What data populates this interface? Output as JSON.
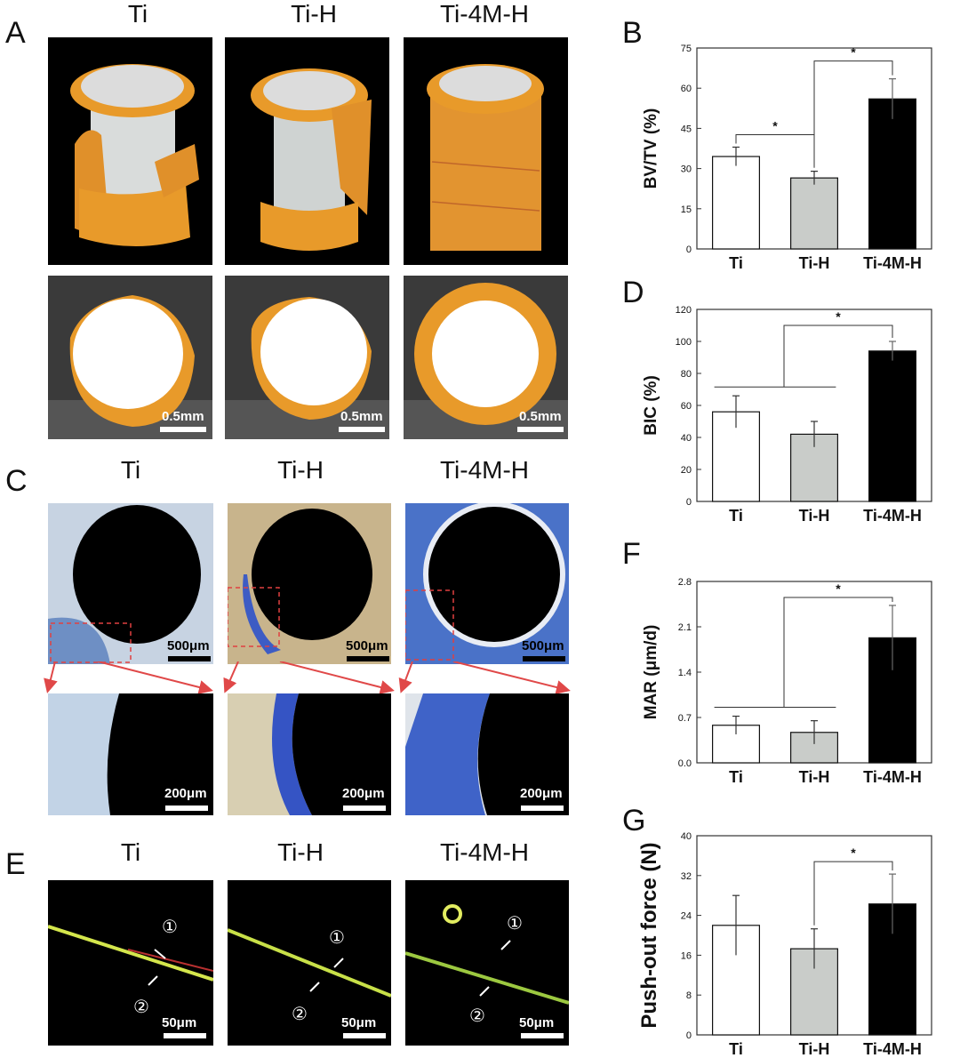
{
  "panel_labels": {
    "A": "A",
    "B": "B",
    "C": "C",
    "D": "D",
    "E": "E",
    "F": "F",
    "G": "G"
  },
  "groups": [
    "Ti",
    "Ti-H",
    "Ti-4M-H"
  ],
  "scale_labels": {
    "A": "0.5mm",
    "C_top": "500μm",
    "C_bottom": "200μm",
    "E": "50μm"
  },
  "arrow_labels": {
    "one": "①",
    "two": "②"
  },
  "colors": {
    "bone_orange": "#e89a2a",
    "stain_blue": "#3f63c8",
    "bar_gray": "#c9ccc9",
    "bar_black": "#000000"
  },
  "chart_data": [
    {
      "id": "B",
      "type": "bar",
      "ylabel": "BV/TV (%)",
      "categories": [
        "Ti",
        "Ti-H",
        "Ti-4M-H"
      ],
      "values": [
        34.5,
        26.5,
        56
      ],
      "errors": [
        3.5,
        2.5,
        7.5
      ],
      "ylim": [
        0,
        75
      ],
      "ticks": [
        0,
        15,
        30,
        45,
        60,
        75
      ],
      "significance": [
        {
          "from": 0,
          "to": 1,
          "label": "*"
        },
        {
          "from": 1,
          "to": 2,
          "label": "*"
        }
      ]
    },
    {
      "id": "D",
      "type": "bar",
      "ylabel": "BIC (%)",
      "categories": [
        "Ti",
        "Ti-H",
        "Ti-4M-H"
      ],
      "values": [
        56,
        42,
        94
      ],
      "errors": [
        10,
        8,
        6
      ],
      "ylim": [
        0,
        120
      ],
      "ticks": [
        0,
        20,
        40,
        60,
        80,
        100,
        120
      ],
      "significance": [
        {
          "from": "0-1",
          "to": 2,
          "label": "*"
        }
      ]
    },
    {
      "id": "F",
      "type": "bar",
      "ylabel": "MAR (μm/d)",
      "categories": [
        "Ti",
        "Ti-H",
        "Ti-4M-H"
      ],
      "values": [
        0.58,
        0.47,
        1.93
      ],
      "errors": [
        0.14,
        0.18,
        0.5
      ],
      "ylim": [
        0,
        2.8
      ],
      "ticks": [
        "0.0",
        "0.7",
        "1.4",
        "2.1",
        "2.8"
      ],
      "significance": [
        {
          "from": "0-1",
          "to": 2,
          "label": "*"
        }
      ]
    },
    {
      "id": "G",
      "type": "bar",
      "ylabel": "Push-out force (N)",
      "categories": [
        "Ti",
        "Ti-H",
        "Ti-4M-H"
      ],
      "values": [
        22,
        17.3,
        26.3
      ],
      "errors": [
        6,
        4,
        6
      ],
      "ylim": [
        0,
        40
      ],
      "ticks": [
        0,
        8,
        16,
        24,
        32,
        40
      ],
      "significance": [
        {
          "from": 1,
          "to": 2,
          "label": "*"
        }
      ]
    }
  ]
}
